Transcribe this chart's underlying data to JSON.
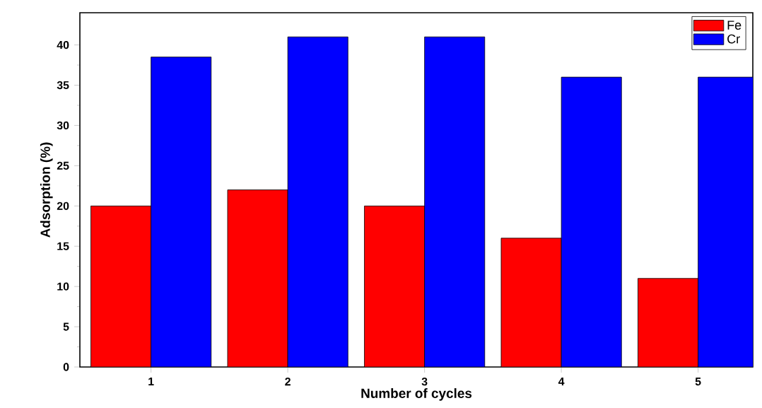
{
  "chart_data": {
    "type": "bar",
    "xlabel": "Number of cycles",
    "ylabel": "Adsorption (%)",
    "categories": [
      "1",
      "2",
      "3",
      "4",
      "5"
    ],
    "series": [
      {
        "name": "Fe",
        "color": "#ff0000",
        "values": [
          20,
          22,
          20,
          16,
          11
        ]
      },
      {
        "name": "Cr",
        "color": "#0000ff",
        "values": [
          38.5,
          41,
          41,
          36,
          36
        ]
      }
    ],
    "ylim": [
      0,
      44
    ],
    "yticks": [
      0,
      5,
      10,
      15,
      20,
      25,
      30,
      35,
      40
    ],
    "legend": "top right"
  }
}
